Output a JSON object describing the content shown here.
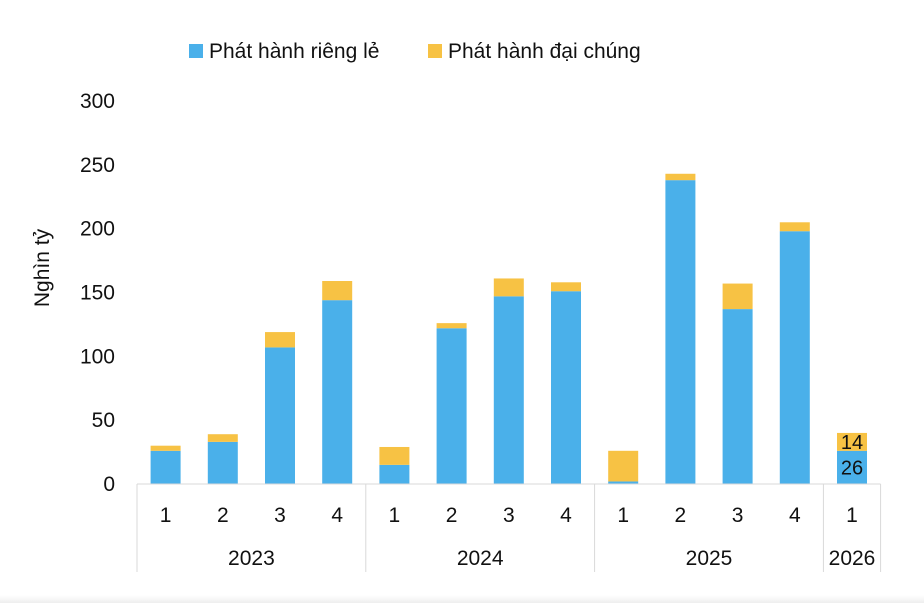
{
  "chart_data": {
    "type": "bar",
    "stacked": true,
    "ylabel": "Nghìn tỷ",
    "ylim": [
      0,
      300
    ],
    "yticks": [
      0,
      50,
      100,
      150,
      200,
      250,
      300
    ],
    "grid": false,
    "legend_position": "top",
    "categories": [
      "1",
      "2",
      "3",
      "4",
      "1",
      "2",
      "3",
      "4",
      "1",
      "2",
      "3",
      "4",
      "1"
    ],
    "groups": [
      {
        "label": "2023",
        "count": 4
      },
      {
        "label": "2024",
        "count": 4
      },
      {
        "label": "2025",
        "count": 4
      },
      {
        "label": "2026",
        "count": 1
      }
    ],
    "series": [
      {
        "name": "Phát hành riêng lẻ",
        "color": "#4ab0ea",
        "values": [
          26,
          33,
          107,
          144,
          15,
          122,
          147,
          151,
          2,
          238,
          137,
          198,
          26
        ]
      },
      {
        "name": "Phát hành đại chúng",
        "color": "#f7c244",
        "values": [
          4,
          6,
          12,
          15,
          14,
          4,
          14,
          7,
          24,
          5,
          20,
          7,
          14
        ]
      }
    ],
    "data_labels": [
      {
        "index": 12,
        "series": 0,
        "text": "26"
      },
      {
        "index": 12,
        "series": 1,
        "text": "14"
      }
    ]
  }
}
